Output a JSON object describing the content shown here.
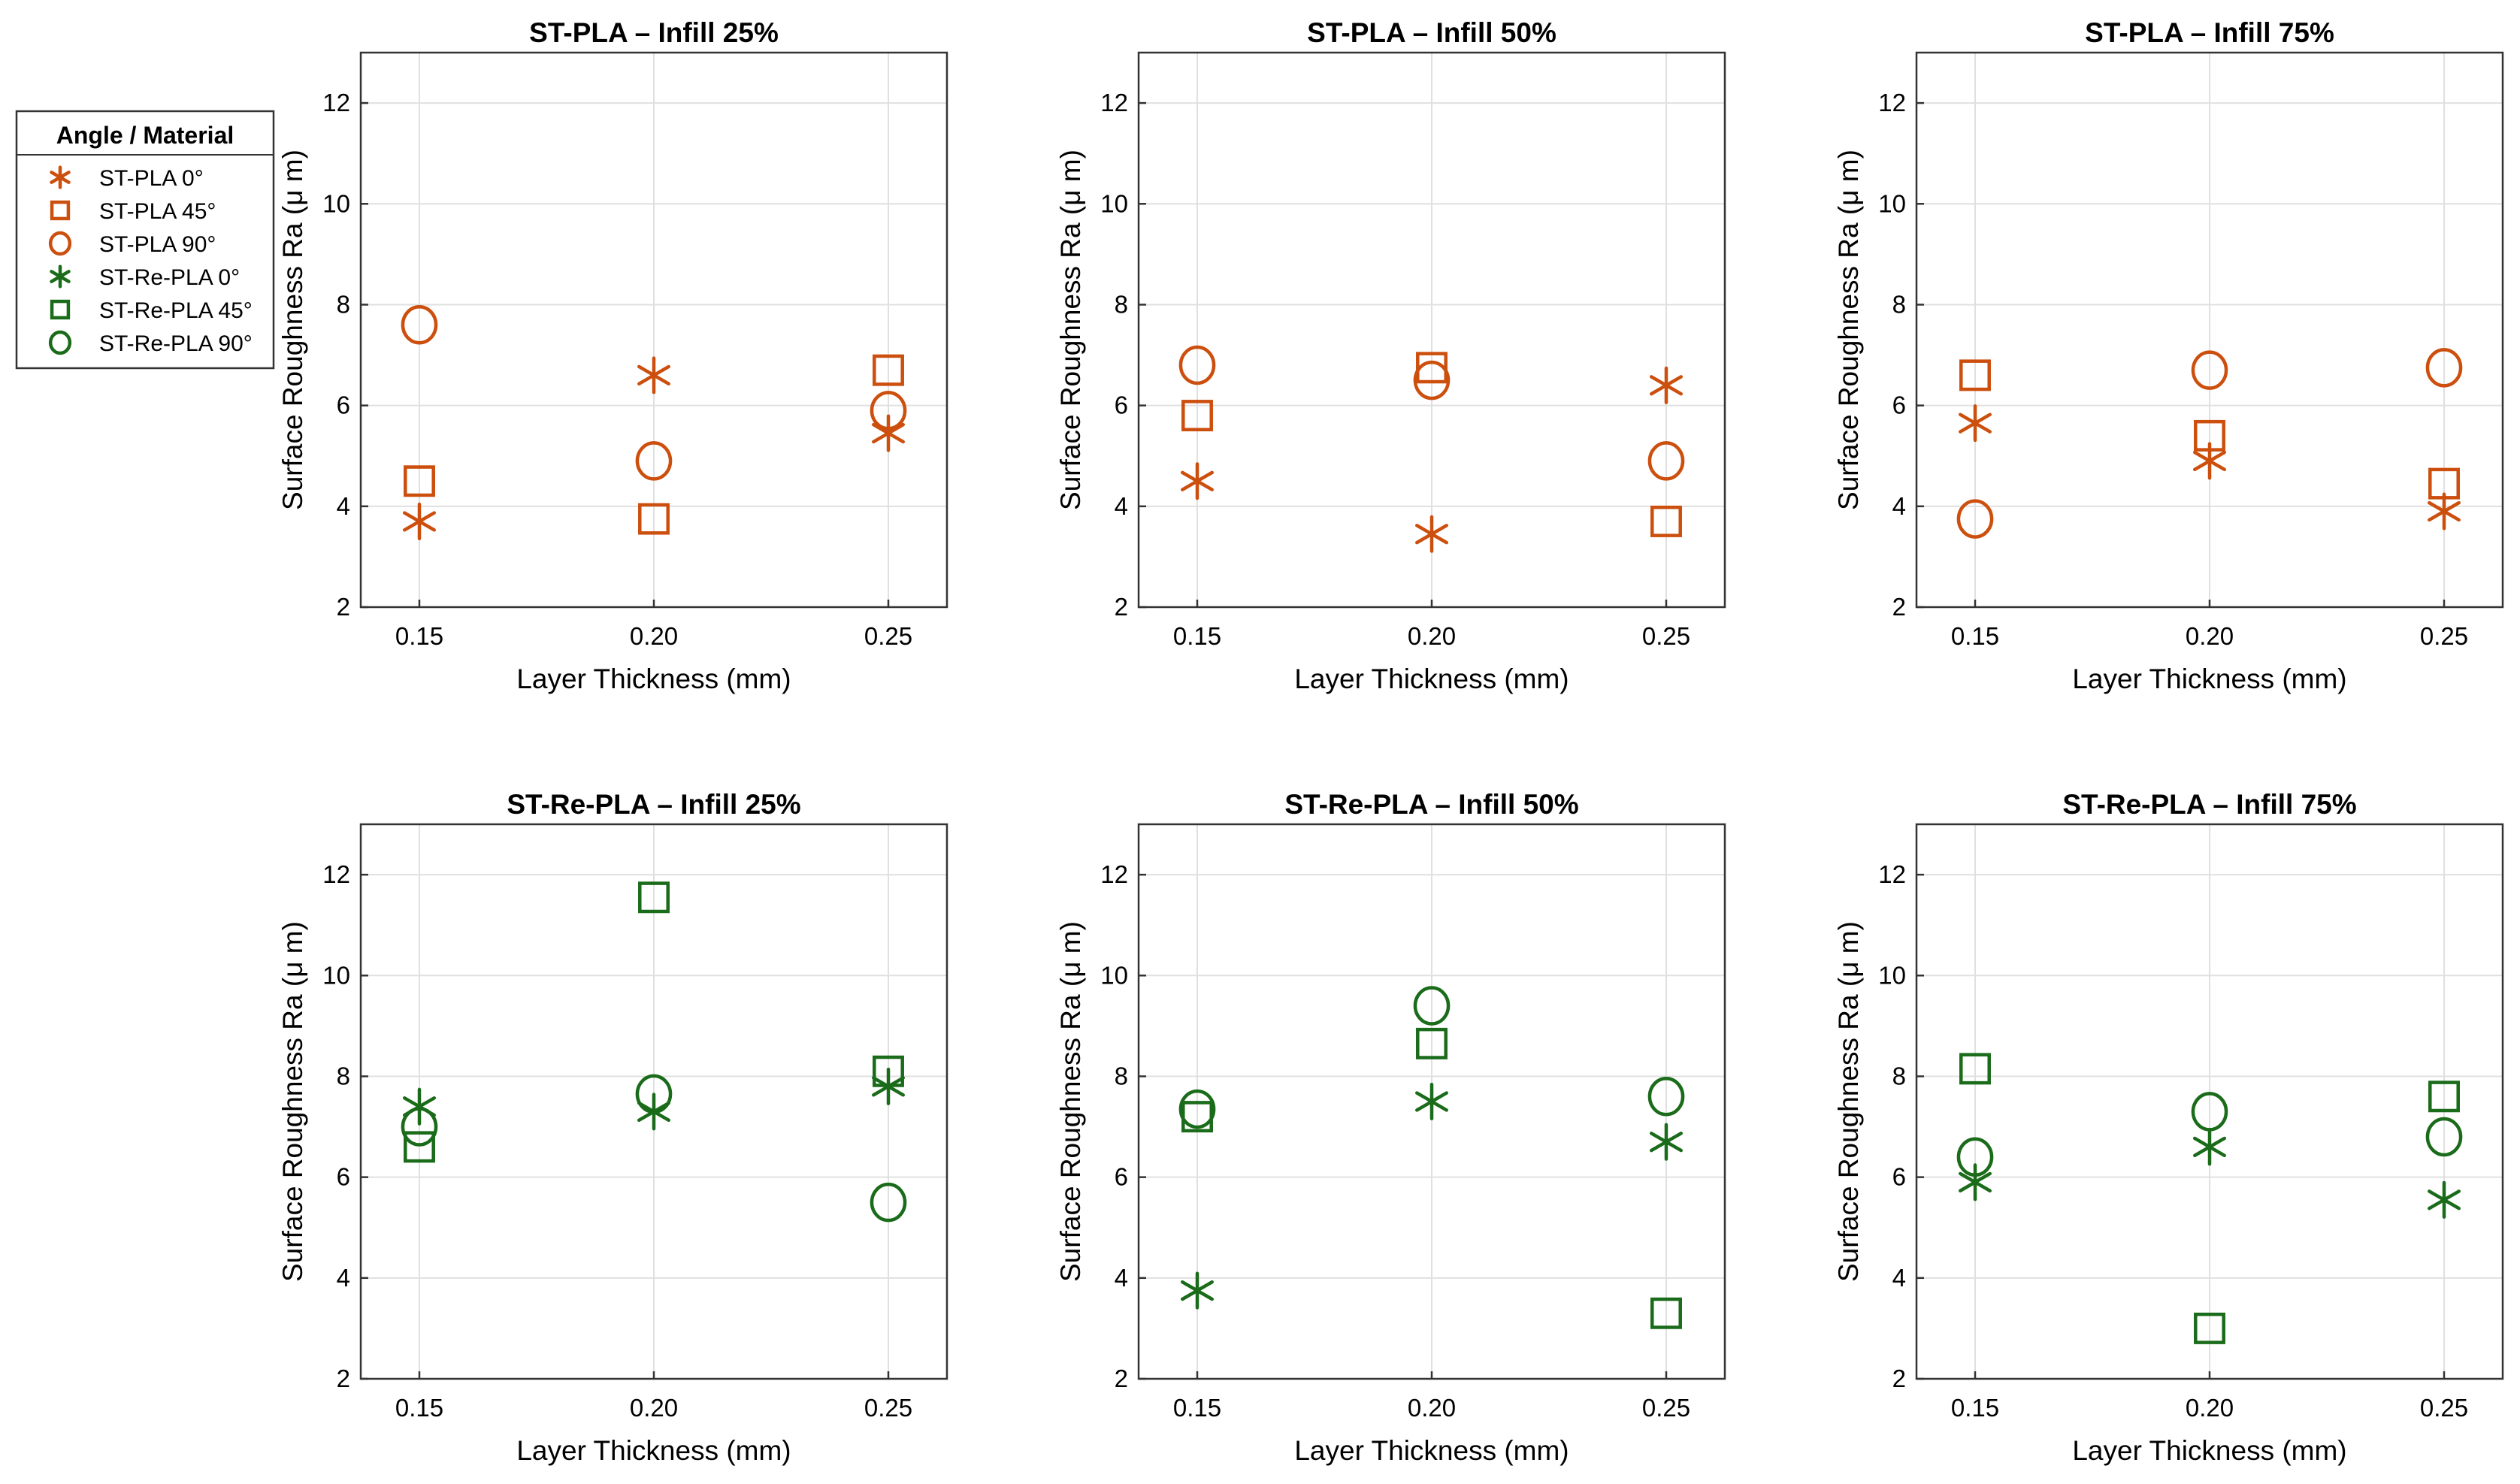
{
  "colors": {
    "st_pla": "#cc4f0e",
    "st_re_pla": "#1a6b1a"
  },
  "legend": {
    "title": "Angle / Material",
    "entries": [
      {
        "label": "ST-PLA 0°",
        "material": "st_pla",
        "marker": "star"
      },
      {
        "label": "ST-PLA 45°",
        "material": "st_pla",
        "marker": "square"
      },
      {
        "label": "ST-PLA 90°",
        "material": "st_pla",
        "marker": "circle"
      },
      {
        "label": "ST-Re-PLA 0°",
        "material": "st_re_pla",
        "marker": "star"
      },
      {
        "label": "ST-Re-PLA 45°",
        "material": "st_re_pla",
        "marker": "square"
      },
      {
        "label": "ST-Re-PLA 90°",
        "material": "st_re_pla",
        "marker": "circle"
      }
    ]
  },
  "chart_data": [
    {
      "type": "scatter",
      "title": "ST-PLA – Infill 25%",
      "material": "st_pla",
      "xlabel": "Layer Thickness (mm)",
      "ylabel": "Surface Roughness Ra (μ m)",
      "categories": [
        "0.15",
        "0.20",
        "0.25"
      ],
      "ylim": [
        2,
        13
      ],
      "yticks": [
        2,
        4,
        6,
        8,
        10,
        12
      ],
      "grid": true,
      "series": [
        {
          "name": "0°",
          "marker": "star",
          "values": [
            3.7,
            6.6,
            5.45
          ]
        },
        {
          "name": "45°",
          "marker": "square",
          "values": [
            4.5,
            3.75,
            6.7
          ]
        },
        {
          "name": "90°",
          "marker": "circle",
          "values": [
            7.6,
            4.9,
            5.9
          ]
        }
      ]
    },
    {
      "type": "scatter",
      "title": "ST-PLA – Infill 50%",
      "material": "st_pla",
      "xlabel": "Layer Thickness (mm)",
      "ylabel": "Surface Roughness Ra (μ m)",
      "categories": [
        "0.15",
        "0.20",
        "0.25"
      ],
      "ylim": [
        2,
        13
      ],
      "yticks": [
        2,
        4,
        6,
        8,
        10,
        12
      ],
      "grid": true,
      "series": [
        {
          "name": "0°",
          "marker": "star",
          "values": [
            4.5,
            3.45,
            6.4
          ]
        },
        {
          "name": "45°",
          "marker": "square",
          "values": [
            5.8,
            6.75,
            3.7
          ]
        },
        {
          "name": "90°",
          "marker": "circle",
          "values": [
            6.8,
            6.5,
            4.9
          ]
        }
      ]
    },
    {
      "type": "scatter",
      "title": "ST-PLA – Infill 75%",
      "material": "st_pla",
      "xlabel": "Layer Thickness (mm)",
      "ylabel": "Surface Roughness Ra (μ m)",
      "categories": [
        "0.15",
        "0.20",
        "0.25"
      ],
      "ylim": [
        2,
        13
      ],
      "yticks": [
        2,
        4,
        6,
        8,
        10,
        12
      ],
      "grid": true,
      "series": [
        {
          "name": "0°",
          "marker": "star",
          "values": [
            5.65,
            4.9,
            3.9
          ]
        },
        {
          "name": "45°",
          "marker": "square",
          "values": [
            6.6,
            5.4,
            4.45
          ]
        },
        {
          "name": "90°",
          "marker": "circle",
          "values": [
            3.75,
            6.7,
            6.75
          ]
        }
      ]
    },
    {
      "type": "scatter",
      "title": "ST-Re-PLA – Infill 25%",
      "material": "st_re_pla",
      "xlabel": "Layer Thickness (mm)",
      "ylabel": "Surface Roughness Ra (μ m)",
      "categories": [
        "0.15",
        "0.20",
        "0.25"
      ],
      "ylim": [
        2,
        13
      ],
      "yticks": [
        2,
        4,
        6,
        8,
        10,
        12
      ],
      "grid": true,
      "series": [
        {
          "name": "0°",
          "marker": "star",
          "values": [
            7.4,
            7.3,
            7.8
          ]
        },
        {
          "name": "45°",
          "marker": "square",
          "values": [
            6.6,
            11.55,
            8.1
          ]
        },
        {
          "name": "90°",
          "marker": "circle",
          "values": [
            7.0,
            7.65,
            5.5
          ]
        }
      ]
    },
    {
      "type": "scatter",
      "title": "ST-Re-PLA – Infill 50%",
      "material": "st_re_pla",
      "xlabel": "Layer Thickness (mm)",
      "ylabel": "Surface Roughness Ra (μ m)",
      "categories": [
        "0.15",
        "0.20",
        "0.25"
      ],
      "ylim": [
        2,
        13
      ],
      "yticks": [
        2,
        4,
        6,
        8,
        10,
        12
      ],
      "grid": true,
      "series": [
        {
          "name": "0°",
          "marker": "star",
          "values": [
            3.75,
            7.5,
            6.7
          ]
        },
        {
          "name": "45°",
          "marker": "square",
          "values": [
            7.2,
            8.65,
            3.3
          ]
        },
        {
          "name": "90°",
          "marker": "circle",
          "values": [
            7.35,
            9.4,
            7.6
          ]
        }
      ]
    },
    {
      "type": "scatter",
      "title": "ST-Re-PLA – Infill 75%",
      "material": "st_re_pla",
      "xlabel": "Layer Thickness (mm)",
      "ylabel": "Surface Roughness Ra (μ m)",
      "categories": [
        "0.15",
        "0.20",
        "0.25"
      ],
      "ylim": [
        2,
        13
      ],
      "yticks": [
        2,
        4,
        6,
        8,
        10,
        12
      ],
      "grid": true,
      "series": [
        {
          "name": "0°",
          "marker": "star",
          "values": [
            5.9,
            6.6,
            5.55
          ]
        },
        {
          "name": "45°",
          "marker": "square",
          "values": [
            8.15,
            3.0,
            7.6
          ]
        },
        {
          "name": "90°",
          "marker": "circle",
          "values": [
            6.4,
            7.3,
            6.8
          ]
        }
      ]
    }
  ]
}
